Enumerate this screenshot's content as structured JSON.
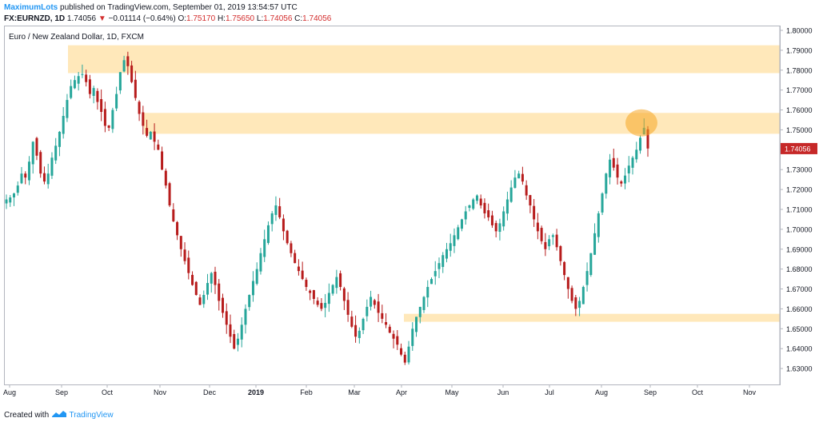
{
  "header": {
    "author": "MaximumLots",
    "published_text": "published on TradingView.com, September 01, 2019 13:54:57 UTC",
    "symbol": "FX:EURNZD, 1D",
    "last": "1.74056",
    "change_arrow": "▼",
    "change": "−0.01114 (−0.64%)",
    "o_label": "O:",
    "o_value": "1.75170",
    "h_label": "H:",
    "h_value": "1.75650",
    "l_label": "L:",
    "l_value": "1.74056",
    "c_label": "C:",
    "c_value": "1.74056"
  },
  "footer": {
    "prefix": "Created with",
    "brand": "TradingView",
    "logo_icon": "tradingview-logo-icon"
  },
  "colors": {
    "up": "#26a69a",
    "down": "#b71c1c",
    "zone": "#ffe0a3",
    "highlight": "#f6a623",
    "price_label": "#c62828"
  },
  "chart_data": {
    "type": "candlestick",
    "title": "Euro / New Zealand Dollar, 1D, FXCM",
    "ylim": [
      1.622,
      1.802
    ],
    "y_ticks": [
      "1.80000",
      "1.79000",
      "1.78000",
      "1.77000",
      "1.76000",
      "1.75000",
      "1.74000",
      "1.73000",
      "1.72000",
      "1.71000",
      "1.70000",
      "1.69000",
      "1.68000",
      "1.67000",
      "1.66000",
      "1.65000",
      "1.64000",
      "1.63000"
    ],
    "x_labels": [
      "Aug",
      "Sep",
      "Oct",
      "Nov",
      "Dec",
      "2019",
      "Feb",
      "Mar",
      "Apr",
      "May",
      "Jun",
      "Jul",
      "Aug",
      "Sep",
      "Oct",
      "Nov"
    ],
    "last_price_label": "1.74056",
    "zones": [
      {
        "from": 1.7785,
        "to": 1.7925
      },
      {
        "from": 1.748,
        "to": 1.7585
      },
      {
        "from": 1.6535,
        "to": 1.6575
      }
    ],
    "series": [
      1.715,
      1.716,
      1.718,
      1.722,
      1.728,
      1.726,
      1.734,
      1.744,
      1.737,
      1.728,
      1.724,
      1.728,
      1.736,
      1.742,
      1.749,
      1.757,
      1.765,
      1.772,
      1.775,
      1.777,
      1.778,
      1.774,
      1.768,
      1.771,
      1.764,
      1.759,
      1.752,
      1.751,
      1.76,
      1.768,
      1.779,
      1.785,
      1.782,
      1.774,
      1.766,
      1.758,
      1.752,
      1.747,
      1.749,
      1.744,
      1.74,
      1.73,
      1.722,
      1.712,
      1.704,
      1.697,
      1.69,
      1.684,
      1.678,
      1.672,
      1.667,
      1.662,
      1.667,
      1.673,
      1.678,
      1.672,
      1.664,
      1.658,
      1.652,
      1.646,
      1.64,
      1.645,
      1.652,
      1.66,
      1.667,
      1.674,
      1.68,
      1.688,
      1.695,
      1.702,
      1.708,
      1.712,
      1.706,
      1.699,
      1.693,
      1.688,
      1.683,
      1.679,
      1.675,
      1.671,
      1.668,
      1.665,
      1.662,
      1.66,
      1.663,
      1.668,
      1.672,
      1.676,
      1.671,
      1.664,
      1.657,
      1.651,
      1.646,
      1.649,
      1.655,
      1.661,
      1.666,
      1.662,
      1.658,
      1.655,
      1.652,
      1.648,
      1.645,
      1.642,
      1.637,
      1.633,
      1.641,
      1.65,
      1.656,
      1.661,
      1.666,
      1.671,
      1.675,
      1.679,
      1.683,
      1.687,
      1.69,
      1.693,
      1.697,
      1.701,
      1.705,
      1.709,
      1.712,
      1.715,
      1.717,
      1.712,
      1.708,
      1.706,
      1.702,
      1.699,
      1.703,
      1.709,
      1.715,
      1.721,
      1.726,
      1.728,
      1.724,
      1.717,
      1.712,
      1.705,
      1.699,
      1.694,
      1.69,
      1.695,
      1.697,
      1.691,
      1.684,
      1.677,
      1.67,
      1.664,
      1.66,
      1.664,
      1.671,
      1.679,
      1.688,
      1.698,
      1.708,
      1.718,
      1.728,
      1.735,
      1.731,
      1.726,
      1.723,
      1.727,
      1.732,
      1.736,
      1.74,
      1.746,
      1.751,
      1.7406
    ]
  }
}
